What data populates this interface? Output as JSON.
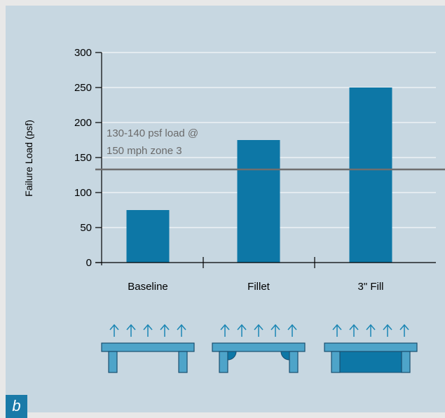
{
  "panel_label": "b",
  "colors": {
    "background": "#c7d7e1",
    "bar": "#0d77a6",
    "reference_line": "#6f6f6f",
    "reference_text": "#6a6a6a",
    "axis": "#000000",
    "grid": "#ffffff",
    "diagram_fill": "#4ea4c9",
    "diagram_stroke": "#1a4f70",
    "arrow": "#1b86b4",
    "panel_tag": "#1a7aa8"
  },
  "chart_data": {
    "type": "bar",
    "title": "",
    "xlabel": "",
    "ylabel": "Failure Load (psf)",
    "categories": [
      "Baseline",
      "Fillet",
      "3\" Fill"
    ],
    "values": [
      75,
      175,
      250
    ],
    "ylim": [
      0,
      300
    ],
    "yticks": [
      0,
      50,
      100,
      150,
      200,
      250,
      300
    ],
    "grid": true,
    "legend": "none",
    "reference_line": {
      "value": 133,
      "label_line1": "130-140 psf load @",
      "label_line2": "150 mph zone 3"
    }
  },
  "diagrams": [
    {
      "category": "Baseline",
      "style": "legs",
      "uplift_arrows": 5
    },
    {
      "category": "Fillet",
      "style": "legs-with-fillets",
      "uplift_arrows": 5
    },
    {
      "category": "3\" Fill",
      "style": "solid-fill",
      "uplift_arrows": 5
    }
  ]
}
